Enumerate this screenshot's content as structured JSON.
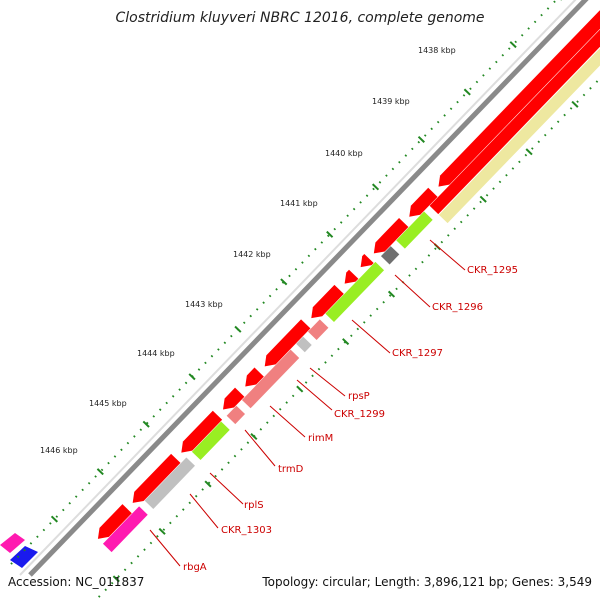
{
  "title": "Clostridium kluyveri NBRC 12016, complete genome",
  "footer": {
    "accession": "Accession: NC_011837",
    "summary": "Topology: circular; Length: 3,896,121 bp; Genes: 3,549"
  },
  "ticks": [
    "1438 kbp",
    "1439 kbp",
    "1440 kbp",
    "1441 kbp",
    "1442 kbp",
    "1443 kbp",
    "1444 kbp",
    "1445 kbp",
    "1446 kbp"
  ],
  "genes": [
    "CKR_1295",
    "CKR_1296",
    "CKR_1297",
    "rpsP",
    "CKR_1299",
    "rimM",
    "trmD",
    "rplS",
    "CKR_1303",
    "rbgA"
  ],
  "colors": {
    "cds": "#ff0000",
    "trna_like": "#f08080",
    "yellowgreen": "#99ee22",
    "beige": "#eee8a0",
    "grey": "#c0c0c0",
    "darkgrey": "#707070",
    "magenta": "#ff1ab0",
    "blue": "#1a1aee",
    "tick": "#228822",
    "label": "#cc0000"
  }
}
